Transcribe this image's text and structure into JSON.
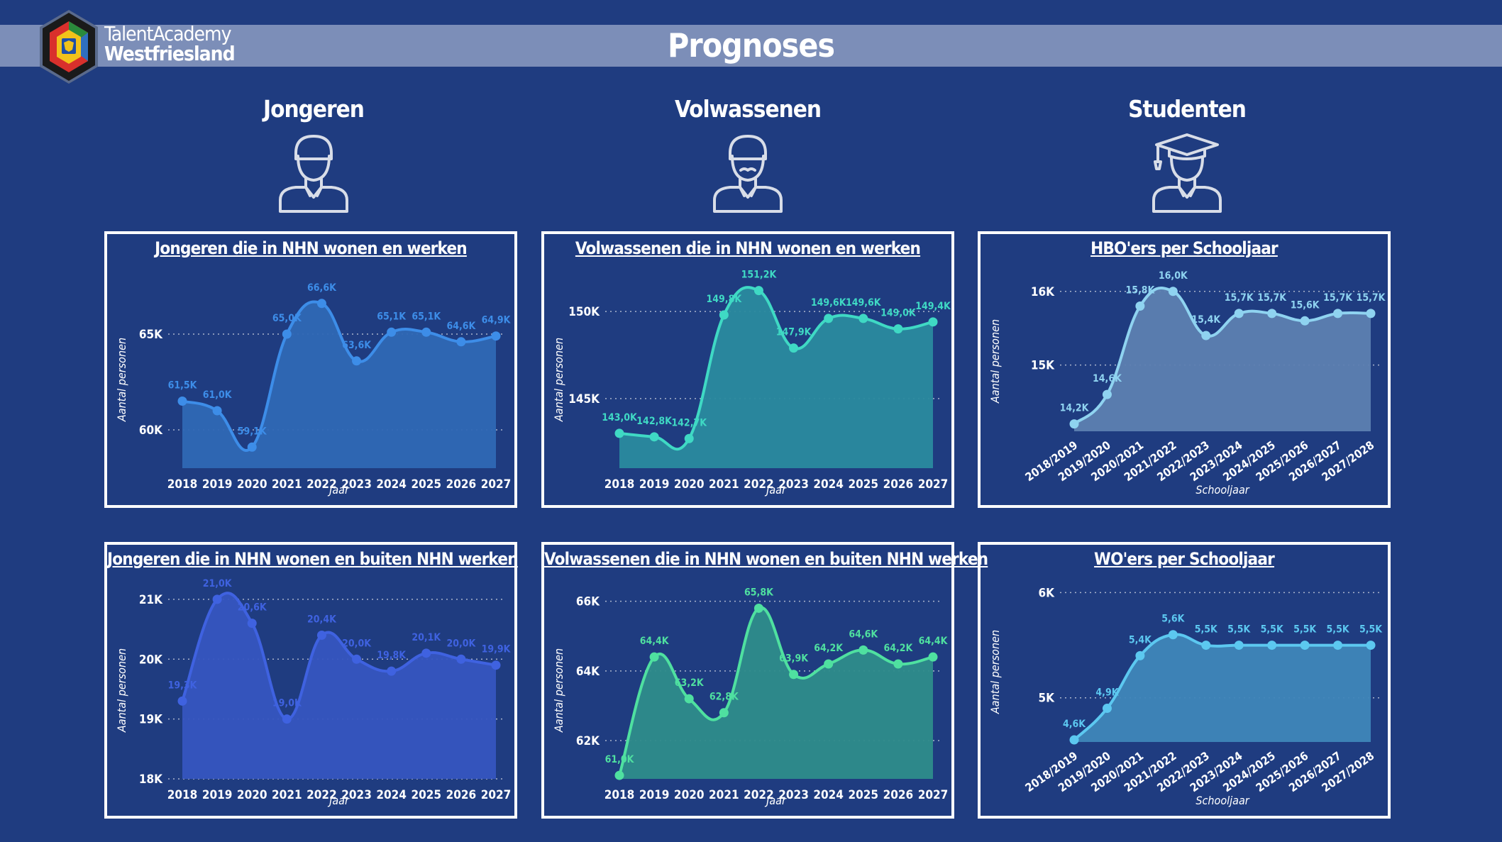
{
  "page": {
    "title": "Prognoses"
  },
  "logo": {
    "line1": "TalentAcademy",
    "line2": "Westfriesland"
  },
  "columns": [
    {
      "title": "Jongeren",
      "icon": "person-icon"
    },
    {
      "title": "Volwassenen",
      "icon": "person-mustache-icon"
    },
    {
      "title": "Studenten",
      "icon": "graduate-icon"
    }
  ],
  "colors": {
    "background": "#1f3c80",
    "header_bar": "#7c8eb8",
    "panel_border": "#ffffff"
  },
  "chart_data": [
    {
      "type": "area",
      "title": "Jongeren die in NHN wonen en werken",
      "xlabel": "Jaar",
      "ylabel": "Aantal personen",
      "color": "#3d8de8",
      "fill": "#2f68b4",
      "x": [
        "2018",
        "2019",
        "2020",
        "2021",
        "2022",
        "2023",
        "2024",
        "2025",
        "2026",
        "2027"
      ],
      "values": [
        61.5,
        61.0,
        59.1,
        65.0,
        66.6,
        63.6,
        65.1,
        65.1,
        64.6,
        64.9
      ],
      "labels": [
        "61,5K",
        "61,0K",
        "59,1K",
        "65,0K",
        "66,6K",
        "63,6K",
        "65,1K",
        "65,1K",
        "64,6K",
        "64,9K"
      ],
      "yticks": [
        60,
        65
      ],
      "ytick_labels": [
        "60K",
        "65K"
      ],
      "ylim": [
        58,
        68
      ],
      "grid": true
    },
    {
      "type": "area",
      "title": "Volwassenen die in NHN wonen en werken",
      "xlabel": "Jaar",
      "ylabel": "Aantal personen",
      "color": "#3fd9c4",
      "fill": "#2a8a9e",
      "x": [
        "2018",
        "2019",
        "2020",
        "2021",
        "2022",
        "2023",
        "2024",
        "2025",
        "2026",
        "2027"
      ],
      "values": [
        143.0,
        142.8,
        142.7,
        149.8,
        151.2,
        147.9,
        149.6,
        149.6,
        149.0,
        149.4
      ],
      "labels": [
        "143,0K",
        "142,8K",
        "142,7K",
        "149,8K",
        "151,2K",
        "147,9K",
        "149,6K",
        "149,6K",
        "149,0K",
        "149,4K"
      ],
      "yticks": [
        145,
        150
      ],
      "ytick_labels": [
        "145K",
        "150K"
      ],
      "ylim": [
        141,
        152
      ],
      "grid": true
    },
    {
      "type": "area",
      "title": "HBO'ers per Schooljaar",
      "xlabel": "Schooljaar",
      "ylabel": "Aantal personen",
      "color": "#8fd3f0",
      "fill": "#5d80b0",
      "x": [
        "2018/2019",
        "2019/2020",
        "2020/2021",
        "2021/2022",
        "2022/2023",
        "2023/2024",
        "2024/2025",
        "2025/2026",
        "2026/2027",
        "2027/2028"
      ],
      "values": [
        14.2,
        14.6,
        15.8,
        16.0,
        15.4,
        15.7,
        15.7,
        15.6,
        15.7,
        15.7
      ],
      "labels": [
        "14,2K",
        "14,6K",
        "15,8K",
        "16,0K",
        "15,4K",
        "15,7K",
        "15,7K",
        "15,6K",
        "15,7K",
        "15,7K"
      ],
      "yticks": [
        15,
        16
      ],
      "ytick_labels": [
        "15K",
        "16K"
      ],
      "ylim": [
        14.1,
        16.2
      ],
      "grid": true
    },
    {
      "type": "area",
      "title": "Jongeren die in NHN wonen en buiten NHN werken",
      "xlabel": "Jaar",
      "ylabel": "Aantal personen",
      "color": "#3f62e0",
      "fill": "#3655bf",
      "x": [
        "2018",
        "2019",
        "2020",
        "2021",
        "2022",
        "2023",
        "2024",
        "2025",
        "2026",
        "2027"
      ],
      "values": [
        19.3,
        21.0,
        20.6,
        19.0,
        20.4,
        20.0,
        19.8,
        20.1,
        20.0,
        19.9
      ],
      "labels": [
        "19,3K",
        "21,0K",
        "20,6K",
        "19,0K",
        "20,4K",
        "20,0K",
        "19,8K",
        "20,1K",
        "20,0K",
        "19,9K"
      ],
      "yticks": [
        18,
        19,
        20,
        21
      ],
      "ytick_labels": [
        "18K",
        "19K",
        "20K",
        "21K"
      ],
      "ylim": [
        18,
        21.2
      ],
      "grid": true
    },
    {
      "type": "area",
      "title": "Volwassenen die in NHN wonen en buiten NHN werken",
      "xlabel": "Jaar",
      "ylabel": "Aantal personen",
      "color": "#4fe0a0",
      "fill": "#2e8c8a",
      "x": [
        "2018",
        "2019",
        "2020",
        "2021",
        "2022",
        "2023",
        "2024",
        "2025",
        "2026",
        "2027"
      ],
      "values": [
        61.0,
        64.4,
        63.2,
        62.8,
        65.8,
        63.9,
        64.2,
        64.6,
        64.2,
        64.4
      ],
      "labels": [
        "61,0K",
        "64,4K",
        "63,2K",
        "62,8K",
        "65,8K",
        "63,9K",
        "64,2K",
        "64,6K",
        "64,2K",
        "64,4K"
      ],
      "yticks": [
        62,
        64,
        66
      ],
      "ytick_labels": [
        "62K",
        "64K",
        "66K"
      ],
      "ylim": [
        60.9,
        66.4
      ],
      "grid": true
    },
    {
      "type": "area",
      "title": "WO'ers per Schooljaar",
      "xlabel": "Schooljaar",
      "ylabel": "Aantal personen",
      "color": "#5cc8f0",
      "fill": "#3f86b8",
      "x": [
        "2018/2019",
        "2019/2020",
        "2020/2021",
        "2021/2022",
        "2022/2023",
        "2023/2024",
        "2024/2025",
        "2025/2026",
        "2026/2027",
        "2027/2028"
      ],
      "values": [
        4.6,
        4.9,
        5.4,
        5.6,
        5.5,
        5.5,
        5.5,
        5.5,
        5.5,
        5.5
      ],
      "labels": [
        "4,6K",
        "4,9K",
        "5,4K",
        "5,6K",
        "5,5K",
        "5,5K",
        "5,5K",
        "5,5K",
        "5,5K",
        "5,5K"
      ],
      "yticks": [
        5,
        6
      ],
      "ytick_labels": [
        "5K",
        "6K"
      ],
      "ylim": [
        4.58,
        6.05
      ],
      "grid": true
    }
  ]
}
